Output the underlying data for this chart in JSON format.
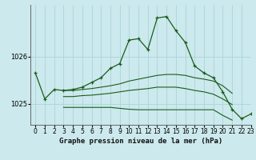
{
  "title": "Graphe pression niveau de la mer (hPa)",
  "background_color": "#cce9ed",
  "grid_color": "#a8d5db",
  "line_color": "#1a5c1a",
  "xlim": [
    -0.5,
    23
  ],
  "ylim": [
    1024.55,
    1027.1
  ],
  "yticks": [
    1025,
    1026
  ],
  "xticks": [
    0,
    1,
    2,
    3,
    4,
    5,
    6,
    7,
    8,
    9,
    10,
    11,
    12,
    13,
    14,
    15,
    16,
    17,
    18,
    19,
    20,
    21,
    22,
    23
  ],
  "main": {
    "x": [
      0,
      1,
      2,
      3,
      4,
      5,
      6,
      7,
      8,
      9,
      10,
      11,
      12,
      13,
      14,
      15,
      16,
      17,
      18,
      19,
      20,
      21,
      22,
      23
    ],
    "y": [
      1025.65,
      1025.1,
      1025.3,
      1025.28,
      1025.3,
      1025.35,
      1025.45,
      1025.55,
      1025.75,
      1025.85,
      1026.35,
      1026.38,
      1026.15,
      1026.82,
      1026.85,
      1026.55,
      1026.3,
      1025.8,
      1025.65,
      1025.55,
      1025.25,
      1024.88,
      1024.68,
      1024.78
    ]
  },
  "line1": {
    "x": [
      3,
      4,
      5,
      6,
      7,
      8,
      9,
      10,
      11,
      12,
      13,
      14,
      15,
      16,
      17,
      18,
      19,
      20,
      21
    ],
    "y": [
      1025.28,
      1025.28,
      1025.3,
      1025.32,
      1025.35,
      1025.38,
      1025.42,
      1025.48,
      1025.52,
      1025.56,
      1025.6,
      1025.62,
      1025.62,
      1025.6,
      1025.55,
      1025.52,
      1025.48,
      1025.38,
      1025.22
    ]
  },
  "line2": {
    "x": [
      3,
      4,
      5,
      6,
      7,
      8,
      9,
      10,
      11,
      12,
      13,
      14,
      15,
      16,
      17,
      18,
      19,
      20,
      21
    ],
    "y": [
      1025.15,
      1025.15,
      1025.17,
      1025.18,
      1025.2,
      1025.22,
      1025.25,
      1025.28,
      1025.3,
      1025.32,
      1025.35,
      1025.35,
      1025.35,
      1025.32,
      1025.28,
      1025.25,
      1025.2,
      1025.1,
      1024.98
    ]
  },
  "line3": {
    "x": [
      3,
      4,
      5,
      6,
      7,
      8,
      9,
      10,
      11,
      12,
      13,
      14,
      15,
      16,
      17,
      18,
      19,
      20,
      21
    ],
    "y": [
      1024.92,
      1024.92,
      1024.92,
      1024.92,
      1024.92,
      1024.92,
      1024.9,
      1024.88,
      1024.87,
      1024.87,
      1024.87,
      1024.87,
      1024.87,
      1024.87,
      1024.87,
      1024.87,
      1024.87,
      1024.75,
      1024.65
    ]
  }
}
